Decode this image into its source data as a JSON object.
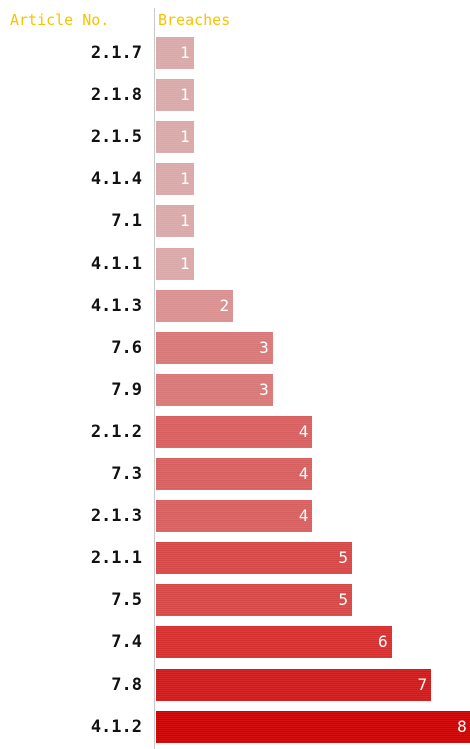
{
  "chart_data": {
    "type": "bar",
    "orientation": "horizontal",
    "headers": {
      "category": "Article No.",
      "value": "Breaches"
    },
    "categories": [
      "2.1.7",
      "2.1.8",
      "2.1.5",
      "4.1.4",
      "7.1",
      "4.1.1",
      "4.1.3",
      "7.6",
      "7.9",
      "2.1.2",
      "7.3",
      "2.1.3",
      "2.1.1",
      "7.5",
      "7.4",
      "7.8",
      "4.1.2"
    ],
    "values": [
      1,
      1,
      1,
      1,
      1,
      1,
      2,
      3,
      3,
      4,
      4,
      4,
      5,
      5,
      6,
      7,
      8
    ],
    "xlim": [
      0,
      8
    ],
    "grid": false,
    "colors": {
      "header": "#f5c400",
      "bar_light": "#d9a8a8",
      "bar_dark": "#d20000",
      "value_text": "#ffffff",
      "label_text": "#111111"
    }
  }
}
